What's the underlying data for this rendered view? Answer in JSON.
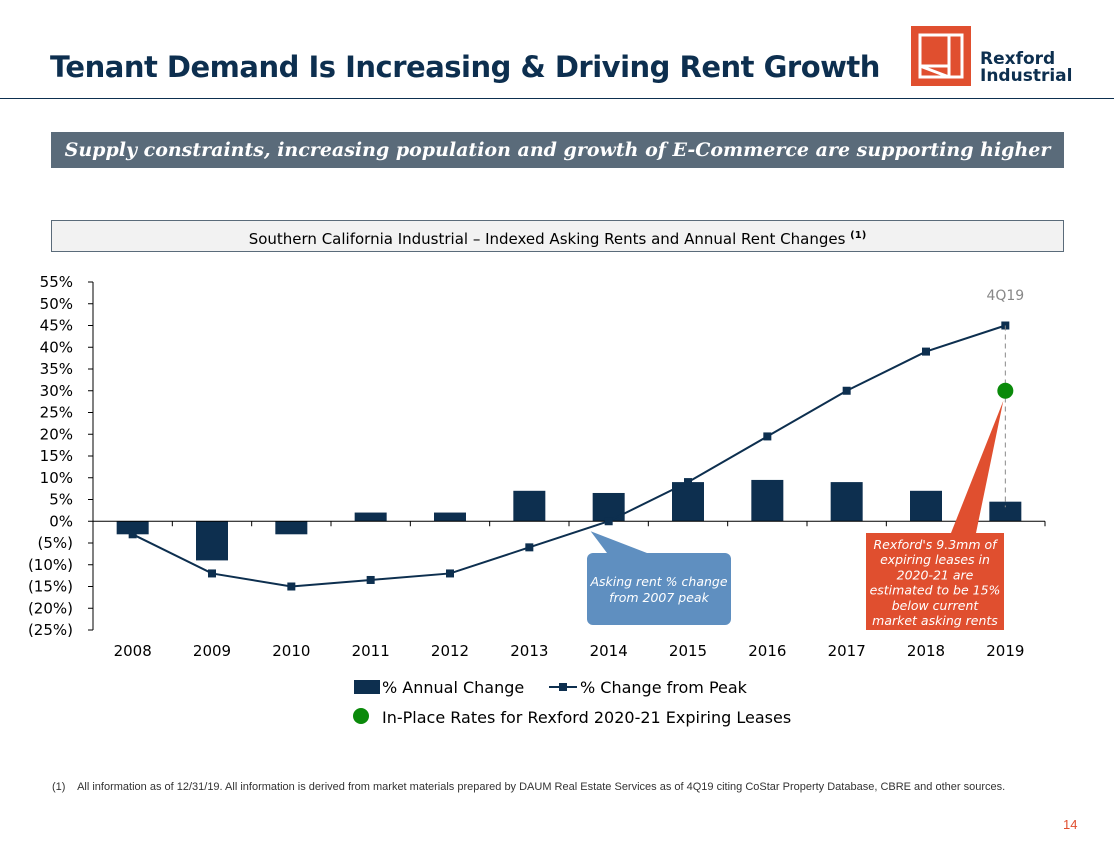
{
  "header": {
    "title": "Tenant Demand Is Increasing & Driving Rent Growth",
    "logo_line1": "Rexford",
    "logo_line2": "Industrial",
    "brand_color": "#e04f2f"
  },
  "banner": {
    "text": "Supply constraints, increasing population and growth of E-Commerce are supporting higher rents"
  },
  "chart_data": {
    "type": "bar",
    "title": "Southern California Industrial – Indexed Asking Rents and Annual Rent Changes",
    "title_note": "(1)",
    "categories": [
      "2008",
      "2009",
      "2010",
      "2011",
      "2012",
      "2013",
      "2014",
      "2015",
      "2016",
      "2017",
      "2018",
      "2019"
    ],
    "series": [
      {
        "name": "% Annual Change",
        "kind": "bar",
        "color": "#0d2f4f",
        "values": [
          -3,
          -9,
          -3,
          2,
          2,
          7,
          6.5,
          9,
          9.5,
          9,
          7,
          4.5
        ]
      },
      {
        "name": "% Change from Peak",
        "kind": "line",
        "color": "#0d2f4f",
        "values": [
          -3,
          -12,
          -15,
          -13.5,
          -12,
          -6,
          0,
          9,
          19.5,
          30,
          39,
          45
        ]
      }
    ],
    "special_point": {
      "name": "In-Place Rates for Rexford 2020-21 Expiring Leases",
      "category": "2019",
      "value": 30,
      "color": "#0a8a0a"
    },
    "y_ticks": [
      -25,
      -20,
      -15,
      -10,
      -5,
      0,
      5,
      10,
      15,
      20,
      25,
      30,
      35,
      40,
      45,
      50,
      55
    ],
    "y_tick_labels": [
      "(25%)",
      "(20%)",
      "(15%)",
      "(10%)",
      "(5%)",
      "0%",
      "5%",
      "10%",
      "15%",
      "20%",
      "25%",
      "30%",
      "35%",
      "40%",
      "45%",
      "50%",
      "55%"
    ],
    "ylim": [
      -25,
      55
    ],
    "annotations": {
      "last_point_label": "4Q19",
      "callout_blue": [
        "Asking rent % change",
        "from 2007 peak"
      ],
      "callout_orange": [
        "Rexford's 9.3mm of",
        "expiring leases in",
        "2020-21 are",
        "estimated to be 15%",
        "below current",
        "market asking rents"
      ]
    },
    "legend": "bottom"
  },
  "footnote": {
    "marker": "(1)",
    "text": "All information as of 12/31/19. All information is derived from market materials prepared by DAUM Real Estate Services as of 4Q19 citing CoStar Property Database, CBRE and other sources."
  },
  "page_number": "14"
}
